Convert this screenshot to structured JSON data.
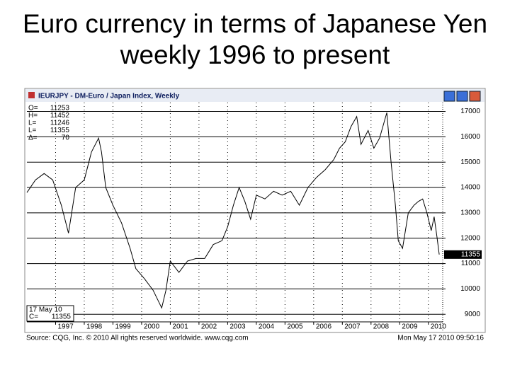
{
  "title": "Euro currency in terms of Japanese Yen weekly 1996 to present",
  "chart_data": {
    "type": "line",
    "window_title": "IEURJPY - DM-Euro / Japan Index, Weekly",
    "color": "#000000",
    "stats": [
      {
        "label": "O=",
        "value": 11253
      },
      {
        "label": "H=",
        "value": 11452
      },
      {
        "label": "L=",
        "value": 11246
      },
      {
        "label": "L=",
        "value": 11355
      },
      {
        "label": "Δ=",
        "value": 70
      }
    ],
    "date_box": {
      "date": "17 May 10",
      "label": "C=",
      "value": 11355
    },
    "last_value": 11355,
    "x": [
      1996.0,
      1996.3,
      1996.6,
      1996.9,
      1997.2,
      1997.45,
      1997.7,
      1998.0,
      1998.25,
      1998.5,
      1998.6,
      1998.75,
      1999.0,
      1999.3,
      1999.6,
      1999.8,
      2000.1,
      2000.4,
      2000.7,
      2000.85,
      2001.0,
      2001.3,
      2001.6,
      2001.9,
      2002.2,
      2002.5,
      2002.8,
      2003.0,
      2003.2,
      2003.4,
      2003.6,
      2003.8,
      2004.0,
      2004.3,
      2004.6,
      2004.9,
      2005.2,
      2005.5,
      2005.8,
      2006.1,
      2006.4,
      2006.7,
      2006.9,
      2007.1,
      2007.3,
      2007.5,
      2007.65,
      2007.9,
      2008.1,
      2008.3,
      2008.55,
      2008.7,
      2008.85,
      2008.95,
      2009.1,
      2009.3,
      2009.5,
      2009.65,
      2009.8,
      2009.95,
      2010.1,
      2010.2,
      2010.3,
      2010.38
    ],
    "values": [
      13800,
      14300,
      14550,
      14300,
      13300,
      12200,
      14000,
      14300,
      15400,
      15950,
      15400,
      14000,
      13300,
      12600,
      11600,
      10800,
      10400,
      9950,
      9250,
      9950,
      11100,
      10650,
      11100,
      11200,
      11200,
      11750,
      11900,
      12450,
      13300,
      14000,
      13450,
      12750,
      13700,
      13550,
      13850,
      13700,
      13850,
      13300,
      14000,
      14400,
      14700,
      15100,
      15550,
      15800,
      16400,
      16800,
      15700,
      16250,
      15550,
      15950,
      16950,
      15000,
      13300,
      11900,
      11600,
      13000,
      13300,
      13450,
      13550,
      13000,
      12300,
      12850,
      12050,
      11355
    ],
    "xlim": [
      1996.0,
      2010.5
    ],
    "xticks": [
      1997,
      1998,
      1999,
      2000,
      2001,
      2002,
      2003,
      2004,
      2005,
      2006,
      2007,
      2008,
      2009,
      2010
    ],
    "ylim": [
      8700,
      17350
    ],
    "yticks": [
      9000,
      10000,
      11000,
      12000,
      13000,
      14000,
      15000,
      16000,
      17000
    ],
    "grid": true,
    "footer_left": "Source: CQG, Inc. © 2010 All rights reserved worldwide. www.cqg.com",
    "footer_right": "Mon May 17 2010 09:50:16"
  }
}
